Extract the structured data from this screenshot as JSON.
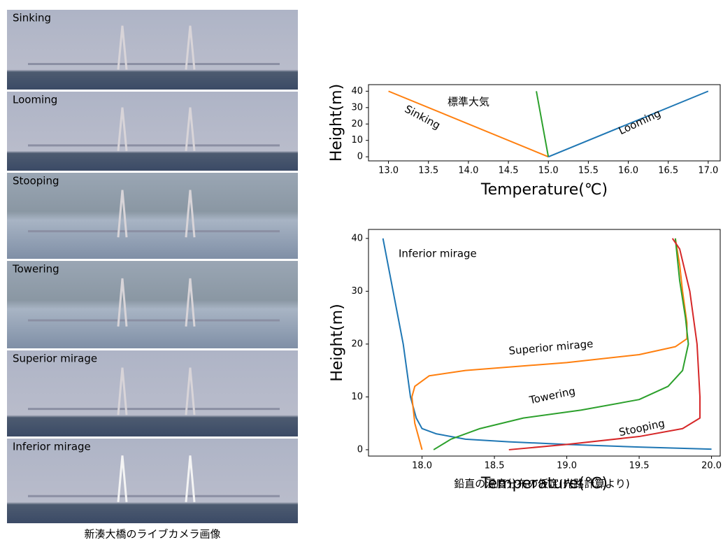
{
  "photos": [
    {
      "label": "Sinking"
    },
    {
      "label": "Looming"
    },
    {
      "label": "Stooping"
    },
    {
      "label": "Towering"
    },
    {
      "label": "Superior mirage"
    },
    {
      "label": "Inferior mirage"
    }
  ],
  "photos_caption": "新湊大橋のライブカメラ画像",
  "charts_caption": "鉛直の温度分布の仮定(光路計算より)",
  "chart_data": [
    {
      "type": "line",
      "x_label": "Temperature(℃)",
      "y_label": "Height(m)",
      "xlim": [
        12.75,
        17.15
      ],
      "ylim": [
        -2.5,
        44
      ],
      "xticks": [
        {
          "value": 13,
          "label": "13.0"
        },
        {
          "value": 13.5,
          "label": "13.5"
        },
        {
          "value": 14,
          "label": "14.0"
        },
        {
          "value": 14.5,
          "label": "14.5"
        },
        {
          "value": 15,
          "label": "15.0"
        },
        {
          "value": 15.5,
          "label": "15.5"
        },
        {
          "value": 16,
          "label": "16.0"
        },
        {
          "value": 16.5,
          "label": "16.5"
        },
        {
          "value": 17,
          "label": "17.0"
        }
      ],
      "yticks": [
        0,
        10,
        20,
        30,
        40
      ],
      "series": [
        {
          "name": "Sinking",
          "color": "#ff7f0e",
          "x": [
            13,
            15
          ],
          "values": [
            40,
            0
          ]
        },
        {
          "name": "標準大気",
          "color": "#2ca02c",
          "x": [
            14.85,
            15
          ],
          "values": [
            40,
            0
          ]
        },
        {
          "name": "Looming",
          "color": "#1f77b4",
          "x": [
            15,
            17
          ],
          "values": [
            0,
            40
          ]
        }
      ]
    },
    {
      "type": "line",
      "x_label": "Temperature(℃)",
      "y_label": "Height(m)",
      "xlim": [
        17.63,
        20.06
      ],
      "ylim": [
        -1.2,
        41.7
      ],
      "xticks": [
        {
          "value": 18,
          "label": "18.0"
        },
        {
          "value": 18.5,
          "label": "18.5"
        },
        {
          "value": 19,
          "label": "19.0"
        },
        {
          "value": 19.5,
          "label": "19.5"
        },
        {
          "value": 20,
          "label": "20.0"
        }
      ],
      "yticks": [
        0,
        10,
        20,
        30,
        40
      ],
      "series": [
        {
          "name": "Inferior mirage",
          "color": "#1f77b4",
          "x": [
            17.73,
            17.8,
            17.87,
            17.92,
            17.96,
            18.0,
            18.1,
            18.3,
            18.6,
            19.0,
            19.5,
            20.0
          ],
          "values": [
            40,
            30,
            20,
            10,
            6,
            4,
            3,
            2,
            1.5,
            1,
            0.5,
            0.1
          ]
        },
        {
          "name": "Superior mirage",
          "color": "#ff7f0e",
          "x": [
            18.0,
            17.95,
            17.93,
            17.95,
            18.05,
            18.3,
            19.0,
            19.5,
            19.75,
            19.83,
            19.83,
            19.8,
            19.78,
            19.75
          ],
          "values": [
            0,
            5,
            10,
            12,
            14,
            15,
            16.5,
            18,
            19.5,
            21,
            24,
            30,
            35,
            40
          ]
        },
        {
          "name": "Towering",
          "color": "#2ca02c",
          "x": [
            18.08,
            18.2,
            18.4,
            18.7,
            19.1,
            19.5,
            19.7,
            19.8,
            19.84,
            19.82,
            19.78,
            19.75
          ],
          "values": [
            0,
            2,
            4,
            6,
            7.5,
            9.5,
            12,
            15,
            20,
            25,
            32,
            40
          ]
        },
        {
          "name": "Stooping",
          "color": "#d62728",
          "x": [
            18.6,
            19.0,
            19.5,
            19.8,
            19.92,
            19.92,
            19.9,
            19.85,
            19.78,
            19.73
          ],
          "values": [
            0,
            1,
            2.5,
            4,
            6,
            10,
            20,
            30,
            38,
            40
          ]
        }
      ]
    }
  ]
}
